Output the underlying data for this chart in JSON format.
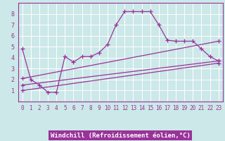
{
  "bg_color": "#cce8e8",
  "line_color": "#993399",
  "grid_color": "#ffffff",
  "xlabel": "Windchill (Refroidissement éolien,°C)",
  "xlim": [
    -0.5,
    23.5
  ],
  "ylim": [
    0,
    9
  ],
  "xticks": [
    0,
    1,
    2,
    3,
    4,
    5,
    6,
    7,
    8,
    9,
    10,
    11,
    12,
    13,
    14,
    15,
    16,
    17,
    18,
    19,
    20,
    21,
    22,
    23
  ],
  "yticks": [
    1,
    2,
    3,
    4,
    5,
    6,
    7,
    8
  ],
  "line1_x": [
    0,
    1,
    2,
    3,
    4,
    5,
    6,
    7,
    8,
    9,
    10,
    11,
    12,
    13,
    14,
    15,
    16,
    17,
    18,
    19,
    20,
    21,
    22,
    23
  ],
  "line1_y": [
    4.8,
    2.0,
    1.5,
    0.85,
    0.85,
    4.1,
    3.6,
    4.1,
    4.1,
    4.45,
    5.2,
    7.0,
    8.2,
    8.2,
    8.2,
    8.2,
    7.0,
    5.6,
    5.5,
    5.5,
    5.5,
    4.8,
    4.1,
    3.7
  ],
  "line2_x": [
    0,
    23
  ],
  "line2_y": [
    2.1,
    5.5
  ],
  "line3_x": [
    0,
    23
  ],
  "line3_y": [
    1.5,
    3.7
  ],
  "line4_x": [
    0,
    23
  ],
  "line4_y": [
    1.0,
    3.5
  ],
  "marker": "+",
  "markersize": 4,
  "linewidth": 0.9,
  "tick_fontsize": 5.5,
  "xlabel_fontsize": 6.5,
  "xlabel_bg": "#993399",
  "xlabel_fg": "#ffffff"
}
